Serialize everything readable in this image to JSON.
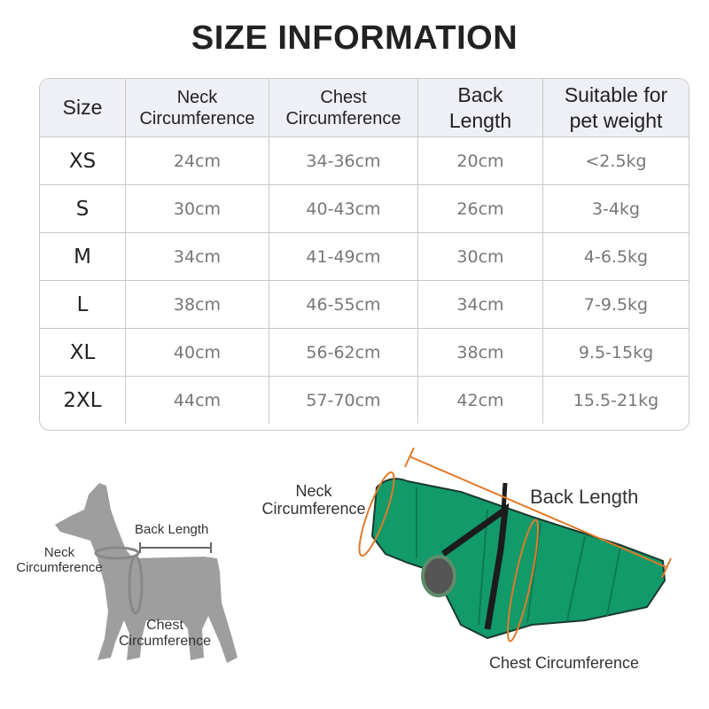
{
  "title": "SIZE INFORMATION",
  "table": {
    "headers": [
      "Size",
      "Neck Circumference",
      "Chest Circumference",
      "Back Length",
      "Suitable for pet weight"
    ],
    "rows": [
      [
        "XS",
        "24cm",
        "34-36cm",
        "20cm",
        "<2.5kg"
      ],
      [
        "S",
        "30cm",
        "40-43cm",
        "26cm",
        "3-4kg"
      ],
      [
        "M",
        "34cm",
        "41-49cm",
        "30cm",
        "4-6.5kg"
      ],
      [
        "L",
        "38cm",
        "46-55cm",
        "34cm",
        "7-9.5kg"
      ],
      [
        "XL",
        "40cm",
        "56-62cm",
        "38cm",
        "9.5-15kg"
      ],
      [
        "2XL",
        "44cm",
        "57-70cm",
        "42cm",
        "15.5-21kg"
      ]
    ]
  },
  "dog_diagram": {
    "neck_label": "Neck Circumference",
    "back_label": "Back Length",
    "chest_label": "Chest Circumference"
  },
  "coat_diagram": {
    "neck_label": "Neck Circumference",
    "back_label": "Back Length",
    "chest_label": "Chest Circumference",
    "coat_color": "#129a6a",
    "measure_color": "#e07a2a"
  }
}
